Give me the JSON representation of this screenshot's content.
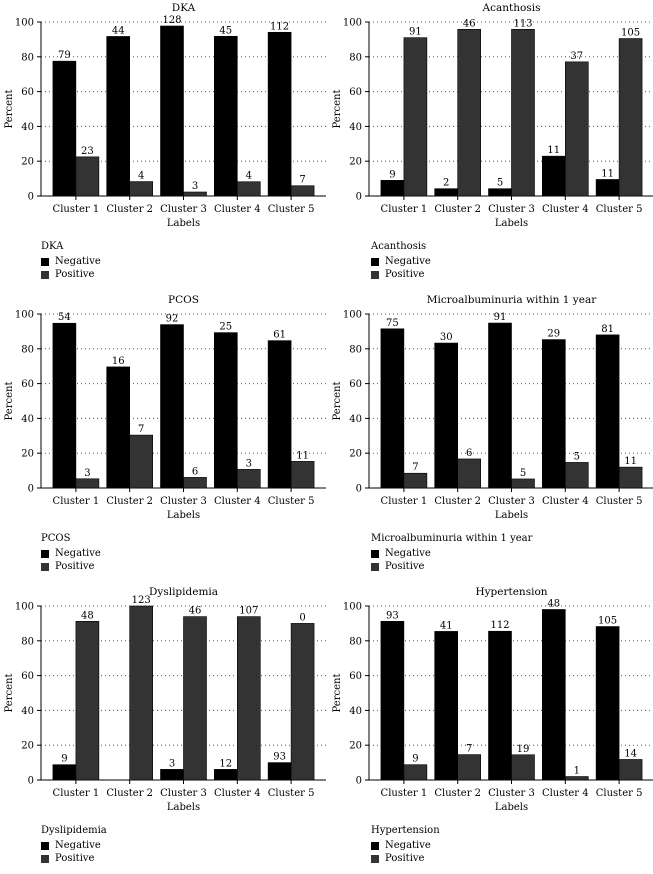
{
  "colors": {
    "negative": "#000000",
    "positive": "#333333",
    "grid": "#555555",
    "axis": "#000000"
  },
  "legend_labels": {
    "negative": "Negative",
    "positive": "Positive"
  },
  "chart_data": [
    {
      "type": "bar",
      "title": "DKA",
      "xlabel": "Labels",
      "ylabel": "Percent",
      "ylim": [
        0,
        100
      ],
      "yticks": [
        0,
        20,
        40,
        60,
        80,
        100
      ],
      "grid": "horizontal dotted",
      "categories": [
        "Cluster 1",
        "Cluster 2",
        "Cluster 3",
        "Cluster 4",
        "Cluster 5"
      ],
      "legend_title": "DKA",
      "legend_placement": "below",
      "series": [
        {
          "name": "Negative",
          "values": [
            77.5,
            91.7,
            97.7,
            91.8,
            94.1
          ],
          "labels": [
            "79",
            "44",
            "128",
            "45",
            "112"
          ]
        },
        {
          "name": "Positive",
          "values": [
            22.5,
            8.3,
            2.3,
            8.2,
            5.9
          ],
          "labels": [
            "23",
            "4",
            "3",
            "4",
            "7"
          ]
        }
      ]
    },
    {
      "type": "bar",
      "title": "Acanthosis",
      "xlabel": "Labels",
      "ylabel": "Percent",
      "ylim": [
        0,
        100
      ],
      "yticks": [
        0,
        20,
        40,
        60,
        80,
        100
      ],
      "grid": "horizontal dotted",
      "categories": [
        "Cluster 1",
        "Cluster 2",
        "Cluster 3",
        "Cluster 4",
        "Cluster 5"
      ],
      "legend_title": "Acanthosis",
      "legend_placement": "below",
      "series": [
        {
          "name": "Negative",
          "values": [
            9,
            4.2,
            4.2,
            22.9,
            9.5
          ],
          "labels": [
            "9",
            "2",
            "5",
            "11",
            "11"
          ]
        },
        {
          "name": "Positive",
          "values": [
            91,
            95.8,
            95.8,
            77.1,
            90.5
          ],
          "labels": [
            "91",
            "46",
            "113",
            "37",
            "105"
          ]
        }
      ]
    },
    {
      "type": "bar",
      "title": "PCOS",
      "xlabel": "Labels",
      "ylabel": "Percent",
      "ylim": [
        0,
        100
      ],
      "yticks": [
        0,
        20,
        40,
        60,
        80,
        100
      ],
      "grid": "horizontal dotted",
      "categories": [
        "Cluster 1",
        "Cluster 2",
        "Cluster 3",
        "Cluster 4",
        "Cluster 5"
      ],
      "legend_title": "PCOS",
      "legend_placement": "below",
      "series": [
        {
          "name": "Negative",
          "values": [
            94.7,
            69.6,
            93.9,
            89.3,
            84.7
          ],
          "labels": [
            "54",
            "16",
            "92",
            "25",
            "61"
          ]
        },
        {
          "name": "Positive",
          "values": [
            5.3,
            30.4,
            6.1,
            10.7,
            15.3
          ],
          "labels": [
            "3",
            "7",
            "6",
            "3",
            "11"
          ]
        }
      ]
    },
    {
      "type": "bar",
      "title": "Microalbuminuria within 1 year",
      "xlabel": "Labels",
      "ylabel": "Percent",
      "ylim": [
        0,
        100
      ],
      "yticks": [
        0,
        20,
        40,
        60,
        80,
        100
      ],
      "grid": "horizontal dotted",
      "categories": [
        "Cluster 1",
        "Cluster 2",
        "Cluster 3",
        "Cluster 4",
        "Cluster 5"
      ],
      "legend_title": "Microalbuminuria within 1 year",
      "legend_placement": "below",
      "series": [
        {
          "name": "Negative",
          "values": [
            91.5,
            83.3,
            94.8,
            85.3,
            88
          ],
          "labels": [
            "75",
            "30",
            "91",
            "29",
            "81"
          ]
        },
        {
          "name": "Positive",
          "values": [
            8.5,
            16.7,
            5.2,
            14.7,
            12
          ],
          "labels": [
            "7",
            "6",
            "5",
            "5",
            "11"
          ]
        }
      ]
    },
    {
      "type": "bar",
      "title": "Dyslipidemia",
      "xlabel": "Labels",
      "ylabel": "Percent",
      "ylim": [
        0,
        100
      ],
      "yticks": [
        0,
        20,
        40,
        60,
        80,
        100
      ],
      "grid": "horizontal dotted",
      "categories": [
        "Cluster 1",
        "Cluster 2",
        "Cluster 3",
        "Cluster 4",
        "Cluster 5"
      ],
      "legend_title": "Dyslipidemia",
      "legend_placement": "below",
      "series": [
        {
          "name": "Negative",
          "values": [
            8.8,
            0,
            6.1,
            6.1,
            10
          ],
          "labels": [
            "9",
            "",
            "3",
            "12",
            "93"
          ]
        },
        {
          "name": "Positive",
          "values": [
            91.2,
            100,
            93.9,
            93.9,
            90
          ],
          "labels": [
            "48",
            "123",
            "46",
            "107",
            "0"
          ]
        }
      ]
    },
    {
      "type": "bar",
      "title": "Hypertension",
      "xlabel": "Labels",
      "ylabel": "Percent",
      "ylim": [
        0,
        100
      ],
      "yticks": [
        0,
        20,
        40,
        60,
        80,
        100
      ],
      "grid": "horizontal dotted",
      "categories": [
        "Cluster 1",
        "Cluster 2",
        "Cluster 3",
        "Cluster 4",
        "Cluster 5"
      ],
      "legend_title": "Hypertension",
      "legend_placement": "below",
      "series": [
        {
          "name": "Negative",
          "values": [
            91.2,
            85.4,
            85.5,
            98,
            88.2
          ],
          "labels": [
            "93",
            "41",
            "112",
            "48",
            "105"
          ]
        },
        {
          "name": "Positive",
          "values": [
            8.8,
            14.6,
            14.5,
            2,
            11.8
          ],
          "labels": [
            "9",
            "7",
            "19",
            "1",
            "14"
          ]
        }
      ]
    }
  ]
}
